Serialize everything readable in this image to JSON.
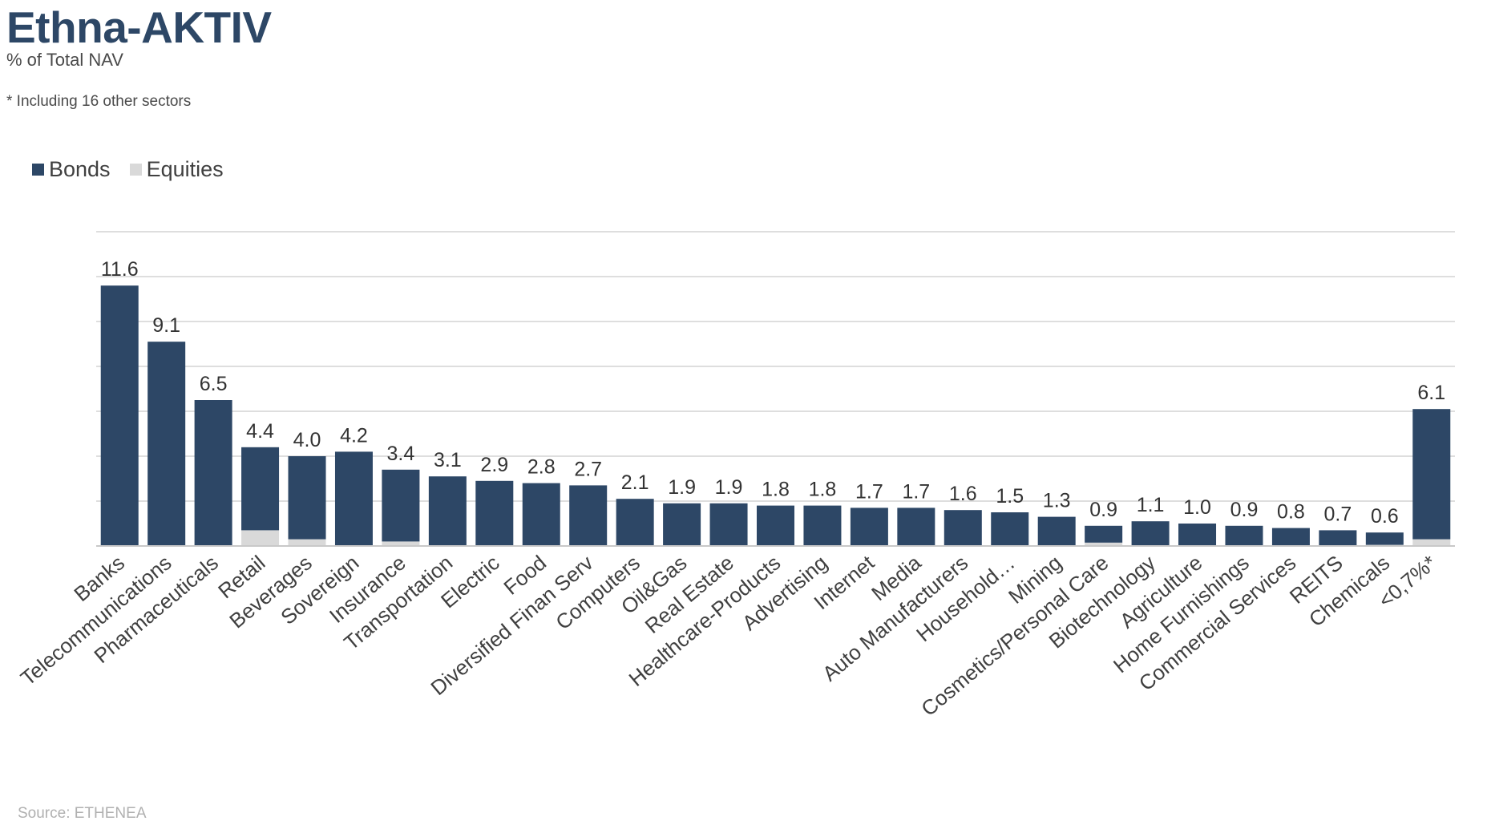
{
  "header": {
    "title": "Ethna-AKTIV",
    "subtitle": "% of Total NAV",
    "footnote": "* Including 16 other sectors"
  },
  "footer": {
    "source": "Source: ETHENEA"
  },
  "colors": {
    "bonds": "#2d4766",
    "equities": "#d9d9d9",
    "grid": "#d4d4d4"
  },
  "chart_data": {
    "type": "bar",
    "stacked": true,
    "title": "Ethna-AKTIV",
    "subtitle": "% of Total NAV",
    "legend_position": "top-left",
    "grid": true,
    "ylim": [
      0,
      14
    ],
    "categories": [
      "Banks",
      "Telecommunications",
      "Pharmaceuticals",
      "Retail",
      "Beverages",
      "Sovereign",
      "Insurance",
      "Transportation",
      "Electric",
      "Food",
      "Diversified Finan Serv",
      "Computers",
      "Oil&Gas",
      "Real Estate",
      "Healthcare-Products",
      "Advertising",
      "Internet",
      "Media",
      "Auto Manufacturers",
      "Household…",
      "Mining",
      "Cosmetics/Personal Care",
      "Biotechnology",
      "Agriculture",
      "Home Furnishings",
      "Commercial Services",
      "REITS",
      "Chemicals",
      "<0,7%*"
    ],
    "totals": [
      "11.6",
      "9.1",
      "6.5",
      "4.4",
      "4.0",
      "4.2",
      "3.4",
      "3.1",
      "2.9",
      "2.8",
      "2.7",
      "2.1",
      "1.9",
      "1.9",
      "1.8",
      "1.8",
      "1.7",
      "1.7",
      "1.6",
      "1.5",
      "1.3",
      "0.9",
      "1.1",
      "1.0",
      "0.9",
      "0.8",
      "0.7",
      "0.6",
      "6.1"
    ],
    "series": [
      {
        "name": "Bonds",
        "values": [
          11.6,
          9.1,
          6.5,
          3.7,
          3.7,
          4.2,
          3.2,
          3.1,
          2.9,
          2.8,
          2.7,
          2.1,
          1.9,
          1.9,
          1.8,
          1.8,
          1.7,
          1.7,
          1.6,
          1.5,
          1.3,
          0.75,
          1.1,
          1.0,
          0.9,
          0.8,
          0.7,
          0.55,
          5.8
        ]
      },
      {
        "name": "Equities",
        "values": [
          0,
          0,
          0,
          0.7,
          0.3,
          0,
          0.2,
          0,
          0,
          0,
          0,
          0,
          0,
          0,
          0,
          0,
          0,
          0,
          0,
          0,
          0,
          0.15,
          0,
          0,
          0,
          0,
          0,
          0.05,
          0.3
        ]
      }
    ]
  }
}
